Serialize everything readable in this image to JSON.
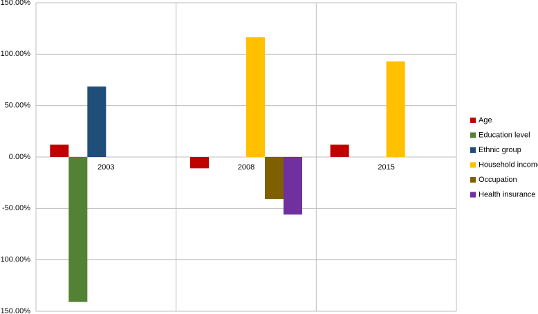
{
  "chart_data": {
    "type": "bar",
    "categories": [
      "2003",
      "2008",
      "2015"
    ],
    "series": [
      {
        "name": "Age",
        "color": "#c00000",
        "values": [
          12,
          -11,
          12
        ]
      },
      {
        "name": "Education level",
        "color": "#548235",
        "values": [
          -141,
          null,
          null
        ]
      },
      {
        "name": "Ethnic group",
        "color": "#1f4e79",
        "values": [
          68.5,
          null,
          null
        ]
      },
      {
        "name": "Household income",
        "color": "#ffc000",
        "values": [
          null,
          116.5,
          93
        ]
      },
      {
        "name": "Occupation",
        "color": "#7f6000",
        "values": [
          null,
          -41,
          null
        ]
      },
      {
        "name": "Health insurance",
        "color": "#7030a0",
        "values": [
          null,
          -56,
          null
        ]
      }
    ],
    "ylim": [
      -150,
      150
    ],
    "yticks": [
      {
        "value": -150,
        "label": "-150.00%"
      },
      {
        "value": -100,
        "label": "-100.00%"
      },
      {
        "value": -50,
        "label": "-50.00%"
      },
      {
        "value": 0,
        "label": "0.00%"
      },
      {
        "value": 50,
        "label": "50.00%"
      },
      {
        "value": 100,
        "label": "100.00%"
      },
      {
        "value": 150,
        "label": "150.00%"
      }
    ],
    "grid": true,
    "legend": "right"
  }
}
